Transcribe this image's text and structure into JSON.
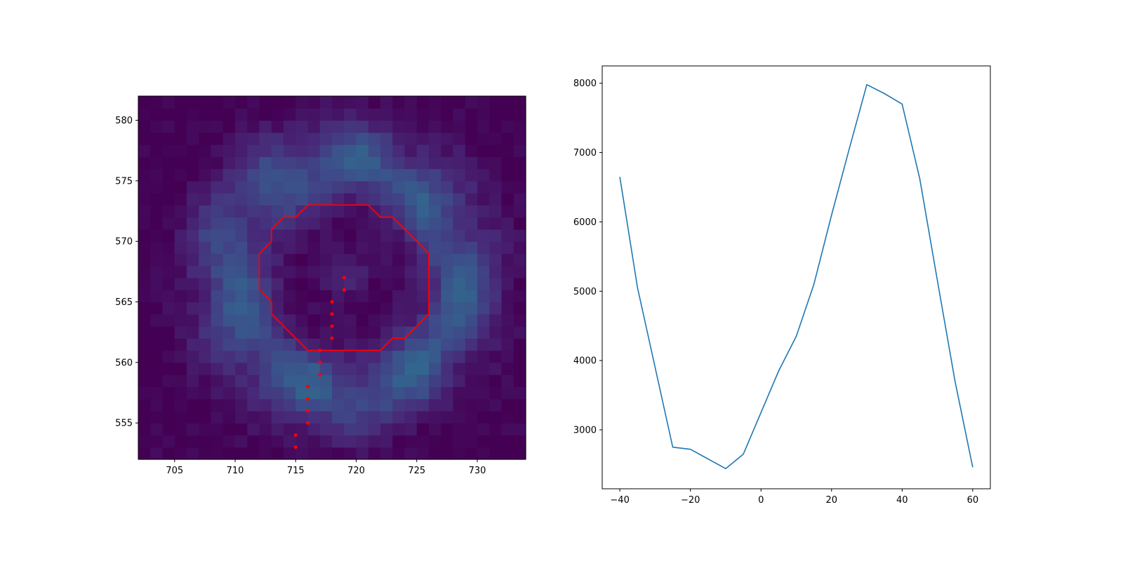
{
  "chart_data": [
    {
      "type": "heatmap",
      "title": "",
      "xlabel": "",
      "ylabel": "",
      "xlim": [
        702,
        734
      ],
      "ylim": [
        552,
        582
      ],
      "x_ticks": [
        705,
        710,
        715,
        720,
        725,
        730
      ],
      "y_ticks": [
        555,
        560,
        565,
        570,
        575,
        580
      ],
      "colormap": "viridis-dark",
      "grid": false,
      "description_values": {
        "ring_center": [
          719,
          567
        ],
        "ring_radius": 9.5,
        "ring_width": 3.5,
        "intensity_range": [
          0.0,
          0.45
        ]
      },
      "overlays": [
        {
          "type": "polygon",
          "color": "#ff0000",
          "points": [
            [
              716,
              573
            ],
            [
              721,
              573
            ],
            [
              722,
              572
            ],
            [
              723,
              572
            ],
            [
              726,
              569
            ],
            [
              726,
              564
            ],
            [
              724,
              562
            ],
            [
              723,
              562
            ],
            [
              722,
              561
            ],
            [
              716,
              561
            ],
            [
              713,
              564
            ],
            [
              713,
              565
            ],
            [
              712,
              566
            ],
            [
              712,
              569
            ],
            [
              713,
              570
            ],
            [
              713,
              571
            ],
            [
              714,
              572
            ],
            [
              715,
              572
            ],
            [
              716,
              573
            ]
          ]
        },
        {
          "type": "scatter",
          "color": "#ff0000",
          "points": [
            [
              719,
              567
            ],
            [
              719,
              566
            ],
            [
              718,
              565
            ],
            [
              718,
              564
            ],
            [
              718,
              563
            ],
            [
              718,
              562
            ],
            [
              717,
              561
            ],
            [
              717,
              560
            ],
            [
              717,
              559
            ],
            [
              716,
              558
            ],
            [
              716,
              557
            ],
            [
              716,
              556
            ],
            [
              716,
              555
            ],
            [
              715,
              554
            ],
            [
              715,
              553
            ]
          ]
        }
      ]
    },
    {
      "type": "line",
      "title": "",
      "xlabel": "",
      "ylabel": "",
      "xlim": [
        -45,
        65
      ],
      "ylim": [
        2150,
        8250
      ],
      "x_ticks": [
        -40,
        -20,
        0,
        20,
        40,
        60
      ],
      "y_ticks": [
        3000,
        4000,
        5000,
        6000,
        7000,
        8000
      ],
      "grid": false,
      "series": [
        {
          "color": "#1f77b4",
          "x": [
            -40,
            -35,
            -30,
            -25,
            -20,
            -15,
            -10,
            -5,
            0,
            5,
            10,
            15,
            20,
            25,
            30,
            35,
            40,
            45,
            50,
            55,
            60
          ],
          "values": [
            6650,
            5050,
            3900,
            2750,
            2720,
            2580,
            2440,
            2650,
            3250,
            3850,
            4350,
            5100,
            6100,
            7050,
            7980,
            7850,
            7700,
            6620,
            5150,
            3700,
            2460
          ]
        }
      ]
    }
  ]
}
